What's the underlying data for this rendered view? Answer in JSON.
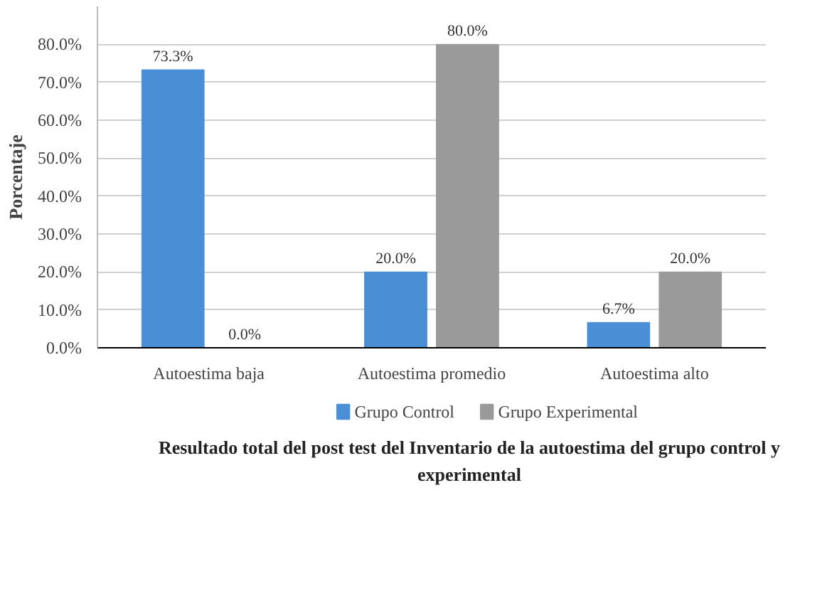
{
  "chart_data": {
    "type": "bar",
    "title": "Resultado total del post test del Inventario de la autoestima del grupo control y experimental",
    "ylabel": "Porcentaje",
    "categories": [
      "Autoestima baja",
      "Autoestima promedio",
      "Autoestima alto"
    ],
    "series": [
      {
        "name": "Grupo Control",
        "color": "#4a8fd6",
        "values": [
          73.3,
          20.0,
          6.7
        ],
        "value_labels": [
          "73.3%",
          "20.0%",
          "6.7%"
        ]
      },
      {
        "name": "Grupo Experimental",
        "color": "#9a9a9a",
        "values": [
          0.0,
          80.0,
          20.0
        ],
        "value_labels": [
          "0.0%",
          "80.0%",
          "20.0%"
        ]
      }
    ],
    "ylim": [
      0,
      90
    ],
    "yticks": [
      {
        "value": 0,
        "label": "0.0%"
      },
      {
        "value": 10,
        "label": "10.0%"
      },
      {
        "value": 20,
        "label": "20.0%"
      },
      {
        "value": 30,
        "label": "30.0%"
      },
      {
        "value": 40,
        "label": "40.0%"
      },
      {
        "value": 50,
        "label": "50.0%"
      },
      {
        "value": 60,
        "label": "60.0%"
      },
      {
        "value": 70,
        "label": "70.0%"
      },
      {
        "value": 80,
        "label": "80.0%"
      }
    ],
    "grid": "y",
    "legend": "bottom"
  }
}
